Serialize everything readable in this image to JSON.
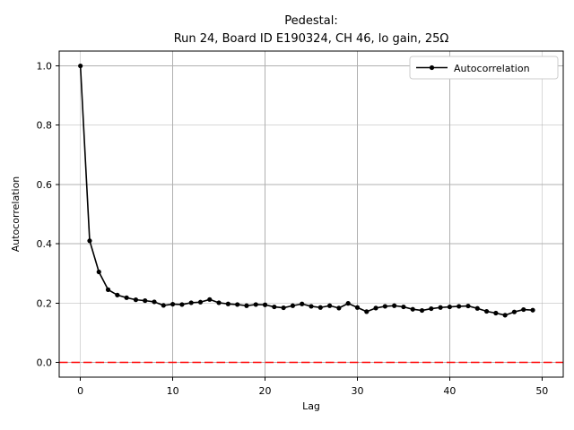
{
  "chart_data": {
    "type": "line",
    "title_line1": "Pedestal:",
    "title_line2": "Run 24, Board ID E190324, CH 46, lo gain, 25Ω",
    "xlabel": "Lag",
    "ylabel": "Autocorrelation",
    "xlim": [
      -2.3,
      52.3
    ],
    "ylim": [
      -0.05,
      1.05
    ],
    "xticks": [
      0,
      10,
      20,
      30,
      40,
      50
    ],
    "xtick_labels": [
      "0",
      "10",
      "20",
      "30",
      "40",
      "50"
    ],
    "yticks": [
      0.0,
      0.2,
      0.4,
      0.6,
      0.8,
      1.0
    ],
    "ytick_labels": [
      "0.0",
      "0.2",
      "0.4",
      "0.6",
      "0.8",
      "1.0"
    ],
    "grid": true,
    "legend": {
      "label": "Autocorrelation",
      "position": "upper right"
    },
    "colors": {
      "series": "#000000",
      "zero_line": "#ff0000",
      "grid": "#b0b0b0",
      "spine": "#000000",
      "legend_border": "#cccccc",
      "background": "#ffffff"
    },
    "zero_line": {
      "y": 0.0,
      "style": "dashed"
    },
    "series": [
      {
        "name": "Autocorrelation",
        "x": [
          0,
          1,
          2,
          3,
          4,
          5,
          6,
          7,
          8,
          9,
          10,
          11,
          12,
          13,
          14,
          15,
          16,
          17,
          18,
          19,
          20,
          21,
          22,
          23,
          24,
          25,
          26,
          27,
          28,
          29,
          30,
          31,
          32,
          33,
          34,
          35,
          36,
          37,
          38,
          39,
          40,
          41,
          42,
          43,
          44,
          45,
          46,
          47,
          48,
          49
        ],
        "values": [
          1.0,
          0.41,
          0.305,
          0.245,
          0.227,
          0.218,
          0.211,
          0.208,
          0.204,
          0.192,
          0.196,
          0.195,
          0.201,
          0.203,
          0.212,
          0.201,
          0.197,
          0.195,
          0.191,
          0.195,
          0.194,
          0.187,
          0.184,
          0.191,
          0.197,
          0.189,
          0.185,
          0.191,
          0.183,
          0.199,
          0.185,
          0.171,
          0.183,
          0.189,
          0.191,
          0.187,
          0.179,
          0.175,
          0.181,
          0.185,
          0.187,
          0.189,
          0.19,
          0.182,
          0.172,
          0.166,
          0.159,
          0.17,
          0.178,
          0.176
        ]
      }
    ]
  }
}
